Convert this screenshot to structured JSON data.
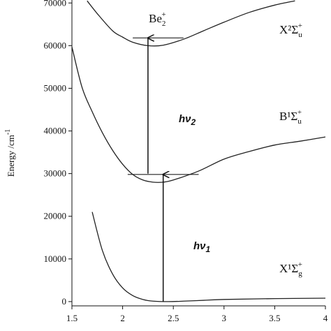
{
  "chart_data": {
    "type": "line",
    "y_label": "Energy /cm",
    "y_label_sup": "-1",
    "xlim": [
      1.5,
      4
    ],
    "ylim": [
      -1000,
      70500
    ],
    "xticks": [
      1.5,
      2,
      2.5,
      3,
      3.5,
      4
    ],
    "yticks": [
      0,
      10000,
      20000,
      30000,
      40000,
      50000,
      60000,
      70000
    ],
    "series": [
      {
        "name": "X1Σg+",
        "color": "#222222",
        "x": [
          1.7,
          1.8,
          1.9,
          2.0,
          2.1,
          2.2,
          2.3,
          2.45,
          2.6,
          2.8,
          3.0,
          3.5,
          4.0
        ],
        "values": [
          21000,
          12000,
          6500,
          3200,
          1400,
          500,
          100,
          0,
          100,
          300,
          500,
          700,
          800
        ]
      },
      {
        "name": "B1Σu+",
        "color": "#222222",
        "x": [
          1.5,
          1.6,
          1.7,
          1.8,
          1.9,
          2.0,
          2.1,
          2.2,
          2.3,
          2.4,
          2.5,
          2.75,
          3.0,
          3.25,
          3.5,
          3.75,
          4.0
        ],
        "values": [
          59700,
          50200,
          44500,
          39600,
          35500,
          32200,
          29800,
          28500,
          28000,
          28000,
          28500,
          30600,
          33400,
          35200,
          36700,
          37600,
          38600
        ]
      },
      {
        "name": "X2Σu+",
        "color": "#222222",
        "x": [
          1.65,
          1.75,
          1.9,
          2.0,
          2.1,
          2.25,
          2.4,
          2.6,
          2.8,
          3.0,
          3.25,
          3.5,
          3.7
        ],
        "values": [
          70500,
          67500,
          63500,
          62000,
          60800,
          60000,
          60100,
          61500,
          63500,
          65500,
          67800,
          69500,
          70500
        ]
      }
    ],
    "levels": [
      {
        "y": 29800,
        "x": [
          2.05,
          2.75
        ]
      },
      {
        "y": 61800,
        "x": [
          2.1,
          2.6
        ]
      }
    ],
    "arrows": [
      {
        "x": 2.4,
        "y": [
          0,
          29800
        ]
      },
      {
        "x": 2.25,
        "y": [
          30000,
          61800
        ]
      }
    ],
    "annotations": [
      {
        "text": "Be",
        "sub": "2",
        "sup": "+"
      },
      {
        "text": "X²Σ",
        "sub": "u",
        "sup": "+"
      },
      {
        "text": "B¹Σ",
        "sub": "u",
        "sup": "+"
      },
      {
        "text": "X¹Σ",
        "sub": "g",
        "sup": "+"
      },
      {
        "text": "hν",
        "sub": "2"
      },
      {
        "text": "hν",
        "sub": "1"
      }
    ]
  }
}
